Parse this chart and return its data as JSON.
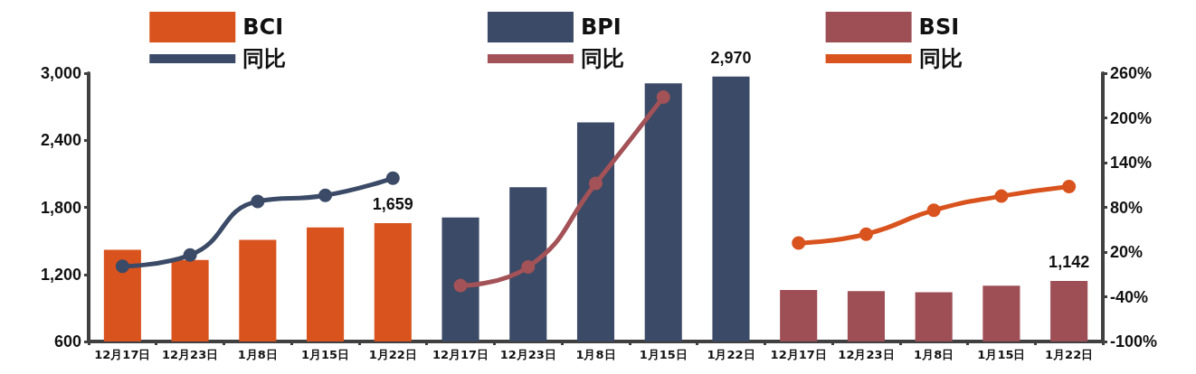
{
  "chart_data": {
    "type": "bar",
    "categories": [
      "12月17日",
      "12月23日",
      "1月8日",
      "1月15日",
      "1月22日",
      "12月17日",
      "12月23日",
      "1月8日",
      "1月15日",
      "1月22日",
      "12月17日",
      "12月23日",
      "1月8日",
      "1月15日",
      "1月22日"
    ],
    "series": [
      {
        "name": "BCI",
        "type": "bar",
        "color": "#d9531e",
        "values": [
          1420,
          1330,
          1510,
          1620,
          1659,
          null,
          null,
          null,
          null,
          null,
          null,
          null,
          null,
          null,
          null
        ],
        "value_labels": [
          null,
          null,
          null,
          null,
          "1,659",
          null,
          null,
          null,
          null,
          null,
          null,
          null,
          null,
          null,
          null
        ]
      },
      {
        "name": "同比",
        "type": "line",
        "axis": "y2",
        "color": "#3b4a66",
        "values": [
          1,
          16,
          88,
          96,
          119,
          null,
          null,
          null,
          null,
          null,
          null,
          null,
          null,
          null,
          null
        ]
      },
      {
        "name": "BPI",
        "type": "bar",
        "color": "#3b4a66",
        "values": [
          null,
          null,
          null,
          null,
          null,
          1710,
          1980,
          2560,
          2910,
          2970,
          null,
          null,
          null,
          null,
          null
        ],
        "value_labels": [
          null,
          null,
          null,
          null,
          null,
          null,
          null,
          null,
          null,
          "2,970",
          null,
          null,
          null,
          null,
          null
        ]
      },
      {
        "name": "同比",
        "type": "line",
        "axis": "y2",
        "color": "#a35257",
        "values": [
          null,
          null,
          null,
          null,
          null,
          -25,
          0,
          112,
          228,
          null,
          null,
          null,
          null,
          null,
          null
        ]
      },
      {
        "name": "BSI",
        "type": "bar",
        "color": "#9e4f56",
        "values": [
          null,
          null,
          null,
          null,
          null,
          null,
          null,
          null,
          null,
          null,
          1060,
          1050,
          1040,
          1100,
          1142
        ],
        "value_labels": [
          null,
          null,
          null,
          null,
          null,
          null,
          null,
          null,
          null,
          null,
          null,
          null,
          null,
          null,
          "1,142"
        ]
      },
      {
        "name": "同比",
        "type": "line",
        "axis": "y2",
        "color": "#d9531e",
        "values": [
          null,
          null,
          null,
          null,
          null,
          null,
          null,
          null,
          null,
          null,
          32,
          44,
          76,
          95,
          108
        ]
      }
    ],
    "ylim": [
      600,
      3000
    ],
    "yticks": [
      600,
      {
        "value": 1200,
        "label": "1,200"
      },
      {
        "value": 1800,
        "label": "1,800"
      },
      {
        "value": 2400,
        "label": "2,400"
      },
      {
        "value": 3000,
        "label": "3,000"
      }
    ],
    "y2lim": [
      -100,
      260
    ],
    "y2ticks": [
      {
        "value": -100,
        "label": "-100%"
      },
      {
        "value": -40,
        "label": "-40%"
      },
      {
        "value": 20,
        "label": "20%"
      },
      {
        "value": 80,
        "label": "80%"
      },
      {
        "value": 140,
        "label": "140%"
      },
      {
        "value": 200,
        "label": "200%"
      },
      {
        "value": 260,
        "label": "260%"
      }
    ],
    "legend": "top",
    "marker": "circle",
    "grid": false
  }
}
